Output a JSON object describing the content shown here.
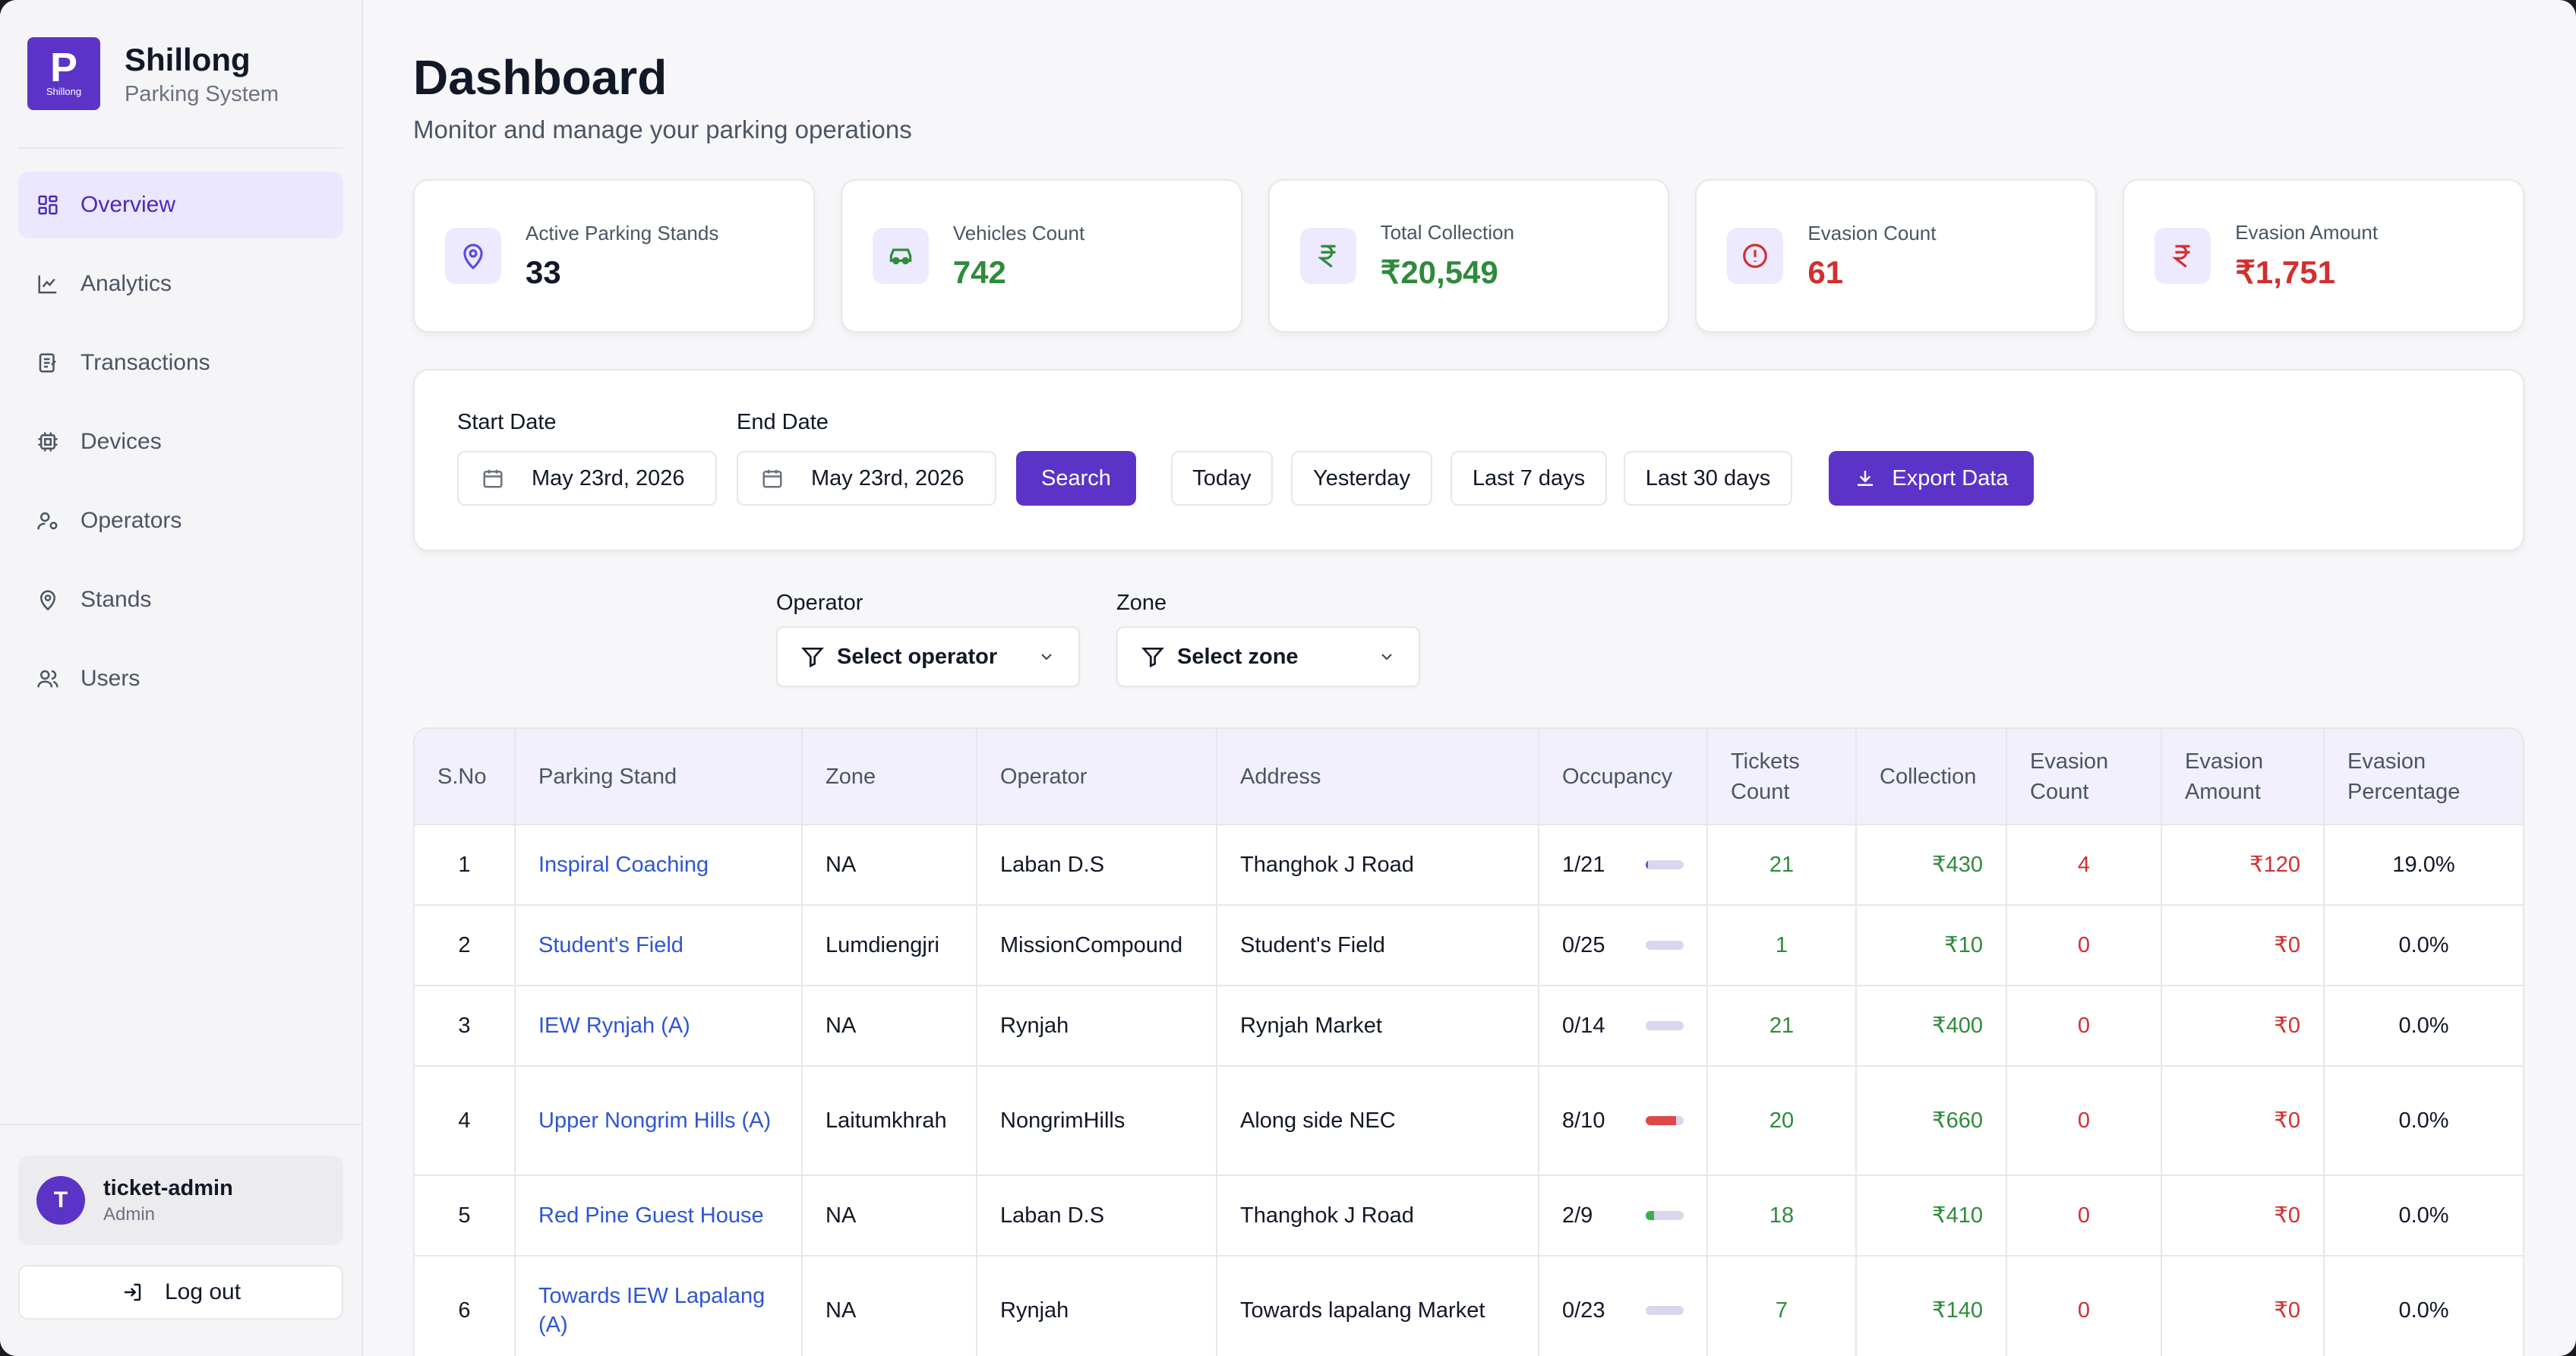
{
  "brand": {
    "logo_letter": "P",
    "logo_small": "Shillong",
    "title": "Shillong",
    "subtitle": "Parking System"
  },
  "nav": [
    {
      "label": "Overview",
      "icon": "grid-icon",
      "active": true
    },
    {
      "label": "Analytics",
      "icon": "chart-line-icon"
    },
    {
      "label": "Transactions",
      "icon": "receipt-icon"
    },
    {
      "label": "Devices",
      "icon": "chip-icon"
    },
    {
      "label": "Operators",
      "icon": "user-cog-icon"
    },
    {
      "label": "Stands",
      "icon": "map-pin-icon"
    },
    {
      "label": "Users",
      "icon": "users-icon"
    }
  ],
  "user": {
    "initial": "T",
    "name": "ticket-admin",
    "role": "Admin"
  },
  "logout_label": "Log out",
  "page": {
    "title": "Dashboard",
    "subtitle": "Monitor and manage your parking operations"
  },
  "stats": [
    {
      "label": "Active Parking Stands",
      "value": "33",
      "color": "#111827",
      "icon": "map-pin-icon",
      "icon_color": "#5b4fd6"
    },
    {
      "label": "Vehicles Count",
      "value": "742",
      "color": "#2e8b3a",
      "icon": "car-icon",
      "icon_color": "#2e8b3a"
    },
    {
      "label": "Total Collection",
      "value": "₹20,549",
      "color": "#2e8b3a",
      "icon": "rupee-icon",
      "icon_color": "#2e8b3a"
    },
    {
      "label": "Evasion Count",
      "value": "61",
      "color": "#d03030",
      "icon": "alert-circle-icon",
      "icon_color": "#d03030"
    },
    {
      "label": "Evasion Amount",
      "value": "₹1,751",
      "color": "#d03030",
      "icon": "rupee-icon",
      "icon_color": "#d03030"
    }
  ],
  "filters": {
    "start_label": "Start Date",
    "start_value": "May 23rd, 2026",
    "end_label": "End Date",
    "end_value": "May 23rd, 2026",
    "search": "Search",
    "today": "Today",
    "yesterday": "Yesterday",
    "last7": "Last 7 days",
    "last30": "Last 30 days",
    "export": "Export Data"
  },
  "selects": {
    "operator_label": "Operator",
    "operator_value": "Select operator",
    "zone_label": "Zone",
    "zone_value": "Select zone"
  },
  "table": {
    "headers": [
      "S.No",
      "Parking Stand",
      "Zone",
      "Operator",
      "Address",
      "Occupancy",
      "Tickets Count",
      "Collection",
      "Evasion Count",
      "Evasion Amount",
      "Evasion Percentage"
    ],
    "rows": [
      {
        "sno": "1",
        "stand": "Inspiral Coaching",
        "zone": "NA",
        "operator": "Laban D.S",
        "address": "Thanghok J Road",
        "occupancy": "1/21",
        "occ_frac": 0.05,
        "occ_color": "#5b4fd6",
        "tickets": "21",
        "collection": "₹430",
        "ev_count": "4",
        "ev_amount": "₹120",
        "ev_pct": "19.0%"
      },
      {
        "sno": "2",
        "stand": "Student's Field",
        "zone": "Lumdiengjri",
        "operator": "MissionCompound",
        "address": "Student's Field",
        "occupancy": "0/25",
        "occ_frac": 0,
        "occ_color": "#5b4fd6",
        "tickets": "1",
        "collection": "₹10",
        "ev_count": "0",
        "ev_amount": "₹0",
        "ev_pct": "0.0%"
      },
      {
        "sno": "3",
        "stand": "IEW Rynjah (A)",
        "zone": "NA",
        "operator": "Rynjah",
        "address": "Rynjah Market",
        "occupancy": "0/14",
        "occ_frac": 0,
        "occ_color": "#5b4fd6",
        "tickets": "21",
        "collection": "₹400",
        "ev_count": "0",
        "ev_amount": "₹0",
        "ev_pct": "0.0%"
      },
      {
        "sno": "4",
        "stand": "Upper Nongrim Hills (A)",
        "zone": "Laitumkhrah",
        "operator": "NongrimHills",
        "address": "Along side NEC",
        "occupancy": "8/10",
        "occ_frac": 0.8,
        "occ_color": "#e04848",
        "tickets": "20",
        "collection": "₹660",
        "ev_count": "0",
        "ev_amount": "₹0",
        "ev_pct": "0.0%"
      },
      {
        "sno": "5",
        "stand": "Red Pine Guest House",
        "zone": "NA",
        "operator": "Laban D.S",
        "address": "Thanghok J Road",
        "occupancy": "2/9",
        "occ_frac": 0.22,
        "occ_color": "#3fae4a",
        "tickets": "18",
        "collection": "₹410",
        "ev_count": "0",
        "ev_amount": "₹0",
        "ev_pct": "0.0%"
      },
      {
        "sno": "6",
        "stand": "Towards IEW Lapalang (A)",
        "zone": "NA",
        "operator": "Rynjah",
        "address": "Towards lapalang Market",
        "occupancy": "0/23",
        "occ_frac": 0,
        "occ_color": "#5b4fd6",
        "tickets": "7",
        "collection": "₹140",
        "ev_count": "0",
        "ev_amount": "₹0",
        "ev_pct": "0.0%"
      }
    ]
  }
}
